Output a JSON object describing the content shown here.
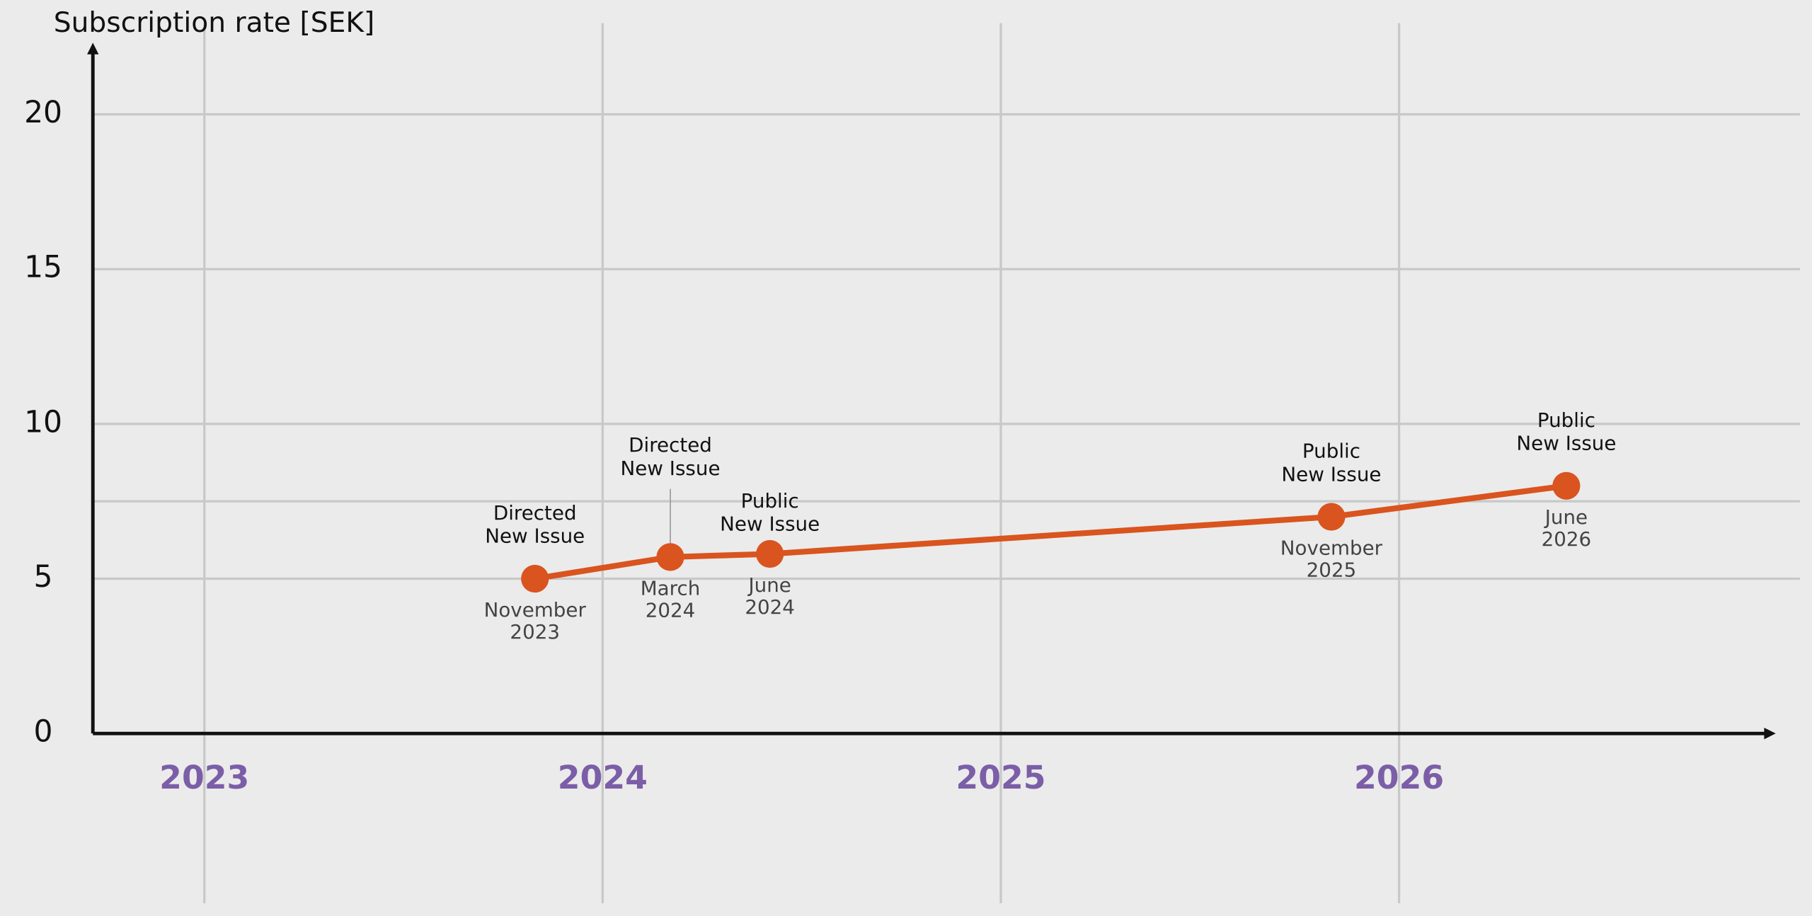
{
  "chart_data": {
    "type": "line",
    "y_label": "Subscription rate [SEK]",
    "x": [
      2023.83,
      2024.17,
      2024.42,
      2025.83,
      2026.42
    ],
    "xlim": [
      2022.72,
      2026.94
    ],
    "xticks": [
      2023,
      2024,
      2025,
      2026
    ],
    "ylim": [
      0,
      22.2
    ],
    "yticks": [
      0,
      5,
      10,
      15,
      20
    ],
    "y_minor_gridlines": [
      7.5
    ],
    "grid": true,
    "series": [
      {
        "color": "#d9541e",
        "values": [
          5.0,
          5.7,
          5.8,
          7.0,
          8.0
        ],
        "event_labels": [
          [
            "Directed",
            "New Issue"
          ],
          [
            "Directed",
            "New Issue"
          ],
          [
            "Public",
            "New Issue"
          ],
          [
            "Public",
            "New Issue"
          ],
          [
            "Public",
            "New Issue"
          ]
        ],
        "date_labels": [
          [
            "November",
            "2023"
          ],
          [
            "March",
            "2024"
          ],
          [
            "June",
            "2024"
          ],
          [
            "November",
            "2025"
          ],
          [
            "June",
            "2026"
          ]
        ]
      }
    ]
  }
}
